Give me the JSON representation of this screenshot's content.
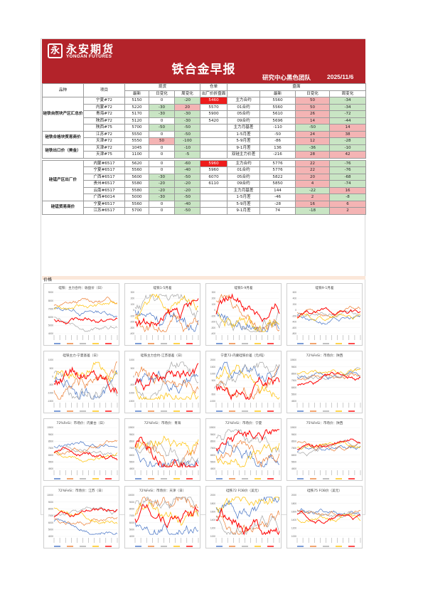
{
  "header": {
    "logo_cn": "永安期货",
    "logo_en": "YONGAN FUTURES",
    "title": "铁合金早报",
    "team": "研究中心黑色团队",
    "date": "2025/11/6"
  },
  "table": {
    "h_variety": "品种",
    "h_item": "项目",
    "h_spot": "现货",
    "h_warehouse": "仓单",
    "h_futures": "盘面",
    "h_latest": "最新",
    "h_daily": "日变化",
    "h_weekly": "周变化",
    "h_factory_price": "出厂价折盘面",
    "groups": [
      {
        "name": "硅铁自然块产区汇总价",
        "rows": [
          {
            "item": "宁夏#72",
            "latest": "5150",
            "daily": "0",
            "weekly": "-20",
            "wh": "5460",
            "fcontract": "主力合约",
            "flatest": "5560",
            "fdaily": "50",
            "fweekly": "-34"
          },
          {
            "item": "内蒙#72",
            "latest": "5220",
            "daily": "-30",
            "weekly": "20",
            "wh": "5570",
            "fcontract": "01合约",
            "flatest": "5560",
            "fdaily": "50",
            "fweekly": "-34"
          },
          {
            "item": "青海#72",
            "latest": "5170",
            "daily": "-30",
            "weekly": "-30",
            "wh": "5900",
            "fcontract": "05合约",
            "flatest": "5610",
            "fdaily": "26",
            "fweekly": "-72"
          },
          {
            "item": "陕西#72",
            "latest": "5120",
            "daily": "0",
            "weekly": "-30",
            "wh": "5420",
            "fcontract": "09合约",
            "flatest": "5696",
            "fdaily": "14",
            "fweekly": "-44"
          },
          {
            "item": "陕西#75",
            "latest": "5700",
            "daily": "-50",
            "weekly": "-50",
            "wh": "",
            "fcontract": "主力月基差",
            "flatest": "-110",
            "fdaily": "-50",
            "fweekly": "14"
          }
        ]
      },
      {
        "name": "硅铁合格块贸易商价",
        "rows": [
          {
            "item": "江苏#72",
            "latest": "5550",
            "daily": "0",
            "weekly": "-50",
            "wh": "",
            "fcontract": "1-5月差",
            "flatest": "-50",
            "fdaily": "24",
            "fweekly": "38"
          },
          {
            "item": "天津#72",
            "latest": "5550",
            "daily": "50",
            "weekly": "-100",
            "wh": "",
            "fcontract": "5-9月差",
            "flatest": "-86",
            "fdaily": "12",
            "fweekly": "-28"
          }
        ]
      },
      {
        "name": "硅铁出口价（美金）",
        "rows": [
          {
            "item": "天津#72",
            "latest": "1045",
            "daily": "0",
            "weekly": "-10",
            "wh": "",
            "fcontract": "9-1月差",
            "flatest": "136",
            "fdaily": "-36",
            "fweekly": "-10"
          },
          {
            "item": "天津#75",
            "latest": "1100",
            "daily": "0",
            "weekly": "-5",
            "wh": "",
            "fcontract": "双硅主力价差",
            "flatest": "-216",
            "fdaily": "28",
            "fweekly": "42"
          }
        ]
      },
      {
        "name": "硅锰产区出厂价",
        "rows": [
          {
            "item": "内蒙#6517",
            "latest": "5620",
            "daily": "0",
            "weekly": "-60",
            "wh": "5960",
            "fcontract": "主力合约",
            "flatest": "5776",
            "fdaily": "22",
            "fweekly": "-76"
          },
          {
            "item": "宁夏#6517",
            "latest": "5560",
            "daily": "0",
            "weekly": "-40",
            "wh": "5960",
            "fcontract": "01合约",
            "flatest": "5776",
            "fdaily": "22",
            "fweekly": "-76"
          },
          {
            "item": "广西#6517",
            "latest": "5600",
            "daily": "-30",
            "weekly": "-50",
            "wh": "6070",
            "fcontract": "05合约",
            "flatest": "5822",
            "fdaily": "20",
            "fweekly": "-68"
          },
          {
            "item": "贵州#6517",
            "latest": "5580",
            "daily": "-20",
            "weekly": "-20",
            "wh": "6110",
            "fcontract": "09合约",
            "flatest": "5850",
            "fdaily": "4",
            "fweekly": "-74"
          },
          {
            "item": "云南#6517",
            "latest": "5580",
            "daily": "-20",
            "weekly": "-20",
            "wh": "",
            "fcontract": "主力月基差",
            "flatest": "144",
            "fdaily": "-22",
            "fweekly": "16"
          },
          {
            "item": "广西#6014",
            "latest": "5000",
            "daily": "-30",
            "weekly": "-50",
            "wh": "",
            "fcontract": "1-5月差",
            "flatest": "-46",
            "fdaily": "2",
            "fweekly": "-8"
          }
        ]
      },
      {
        "name": "硅锰贸易商价",
        "rows": [
          {
            "item": "宁夏#6517",
            "latest": "5560",
            "daily": "0",
            "weekly": "-40",
            "wh": "",
            "fcontract": "5-9月差",
            "flatest": "-28",
            "fdaily": "16",
            "fweekly": "6"
          },
          {
            "item": "江苏#6517",
            "latest": "5700",
            "daily": "0",
            "weekly": "-50",
            "wh": "",
            "fcontract": "9-1月差",
            "flatest": "74",
            "fdaily": "-18",
            "fweekly": "2"
          }
        ]
      }
    ]
  },
  "charts_label": "价格",
  "charts": [
    {
      "title": "硅铁：主力合约：收盘价（日）",
      "type": "line",
      "ylim": [
        4000,
        9500
      ],
      "yticks": [
        "9000",
        "8000",
        "7000",
        "6000",
        "5000",
        "4000"
      ],
      "series": [
        {
          "color": "#4472c4"
        },
        {
          "color": "#ed7d31"
        },
        {
          "color": "#a5a5a5"
        },
        {
          "color": "#ffc000"
        },
        {
          "color": "#ff0000"
        }
      ]
    },
    {
      "title": "硅铁1-5月差",
      "type": "line",
      "ylim": [
        -400,
        400
      ],
      "yticks": [
        "300",
        "200",
        "100",
        "0",
        "-100",
        "-200",
        "-300",
        "-400"
      ],
      "series": [
        {
          "color": "#4472c4"
        },
        {
          "color": "#ed7d31"
        },
        {
          "color": "#a5a5a5"
        },
        {
          "color": "#ffc000"
        },
        {
          "color": "#ff0000"
        }
      ]
    },
    {
      "title": "硅铁5-9月差",
      "type": "line",
      "ylim": [
        -400,
        400
      ],
      "yticks": [
        "300",
        "200",
        "100",
        "0",
        "-100",
        "-200",
        "-300",
        "-400"
      ],
      "series": [
        {
          "color": "#4472c4"
        },
        {
          "color": "#ed7d31"
        },
        {
          "color": "#a5a5a5"
        },
        {
          "color": "#ffc000"
        },
        {
          "color": "#ff0000"
        }
      ]
    },
    {
      "title": "硅铁9-1月差",
      "type": "line",
      "ylim": [
        -800,
        600
      ],
      "yticks": [
        "600",
        "400",
        "200",
        "0",
        "-200",
        "-400",
        "-600",
        "-800"
      ],
      "series": [
        {
          "color": "#4472c4"
        },
        {
          "color": "#ed7d31"
        },
        {
          "color": "#a5a5a5"
        },
        {
          "color": "#ffc000"
        },
        {
          "color": "#ff0000"
        }
      ]
    },
    {
      "title": "硅铁主力-宁夏基差（日）",
      "type": "line",
      "ylim": [
        -1500,
        1500
      ],
      "yticks": [
        "1000",
        "500",
        "0",
        "-500",
        "-1000",
        "-1500"
      ],
      "series": [
        {
          "color": "#4472c4"
        },
        {
          "color": "#ed7d31"
        },
        {
          "color": "#a5a5a5"
        },
        {
          "color": "#ffc000"
        },
        {
          "color": "#ff0000"
        }
      ]
    },
    {
      "title": "硅铁主力合约-江苏基差（日）",
      "type": "line",
      "ylim": [
        -1500,
        1500
      ],
      "yticks": [
        "1000",
        "500",
        "0",
        "-500",
        "-1000",
        "-1500"
      ],
      "series": [
        {
          "color": "#4472c4"
        },
        {
          "color": "#ed7d31"
        },
        {
          "color": "#a5a5a5"
        },
        {
          "color": "#ffc000"
        },
        {
          "color": "#ff0000"
        }
      ]
    },
    {
      "title": "宁夏72-内蒙硅铁价差（元/吨）",
      "type": "line",
      "ylim": [
        -1000,
        2500
      ],
      "yticks": [
        "2000",
        "1500",
        "1000",
        "500",
        "0",
        "-500",
        "-1000"
      ],
      "series": [
        {
          "color": "#4472c4"
        },
        {
          "color": "#ed7d31"
        },
        {
          "color": "#a5a5a5"
        },
        {
          "color": "#ffc000"
        },
        {
          "color": "#ff0000"
        }
      ]
    },
    {
      "title": "72%FeSi：市场价：陕西",
      "type": "line",
      "ylim": [
        4500,
        10500
      ],
      "yticks": [
        "10500",
        "9500",
        "8500",
        "7500",
        "6500",
        "5500",
        "4500"
      ],
      "series": [
        {
          "color": "#4472c4"
        },
        {
          "color": "#ed7d31"
        },
        {
          "color": "#a5a5a5"
        },
        {
          "color": "#ffc000"
        },
        {
          "color": "#ff0000"
        }
      ]
    },
    {
      "title": "72%FeSi：市场价：内蒙古（日）",
      "type": "line",
      "ylim": [
        4500,
        10500
      ],
      "yticks": [
        "10500",
        "9500",
        "8500",
        "7500",
        "6500",
        "5500",
        "4500"
      ],
      "series": [
        {
          "color": "#4472c4"
        },
        {
          "color": "#ed7d31"
        },
        {
          "color": "#a5a5a5"
        },
        {
          "color": "#ffc000"
        },
        {
          "color": "#ff0000"
        }
      ]
    },
    {
      "title": "72%FeSi：市场价：青海",
      "type": "line",
      "ylim": [
        4500,
        10500
      ],
      "yticks": [
        "10500",
        "9500",
        "8500",
        "7500",
        "6500",
        "5500",
        "4500"
      ],
      "series": [
        {
          "color": "#4472c4"
        },
        {
          "color": "#ed7d31"
        },
        {
          "color": "#a5a5a5"
        },
        {
          "color": "#ffc000"
        },
        {
          "color": "#ff0000"
        }
      ]
    },
    {
      "title": "72%FeSi：市场价：宁夏",
      "type": "line",
      "ylim": [
        4500,
        10500
      ],
      "yticks": [
        "10500",
        "9500",
        "8500",
        "7500",
        "6500",
        "5500",
        "4500"
      ],
      "series": [
        {
          "color": "#4472c4"
        },
        {
          "color": "#ed7d31"
        },
        {
          "color": "#a5a5a5"
        },
        {
          "color": "#ffc000"
        },
        {
          "color": "#ff0000"
        }
      ]
    },
    {
      "title": "75%FeSi：市场价：陕西",
      "type": "line",
      "ylim": [
        4500,
        10500
      ],
      "yticks": [
        "10500",
        "9500",
        "8500",
        "7500",
        "6500",
        "5500",
        "4500"
      ],
      "series": [
        {
          "color": "#4472c4"
        },
        {
          "color": "#ed7d31"
        },
        {
          "color": "#a5a5a5"
        },
        {
          "color": "#ffc000"
        },
        {
          "color": "#ff0000"
        }
      ]
    },
    {
      "title": "72%FeSi：市场价：江苏（日）",
      "type": "line",
      "ylim": [
        4000,
        10000
      ],
      "yticks": [
        "10000",
        "9000",
        "8000",
        "7000",
        "6000",
        "5000",
        "4000"
      ],
      "series": [
        {
          "color": "#4472c4"
        },
        {
          "color": "#ed7d31"
        },
        {
          "color": "#a5a5a5"
        },
        {
          "color": "#ffc000"
        },
        {
          "color": "#ff0000"
        }
      ]
    },
    {
      "title": "72%FeSi：市场价：天津（日）",
      "type": "line",
      "ylim": [
        4000,
        10000
      ],
      "yticks": [
        "10000",
        "9000",
        "8000",
        "7000",
        "6000",
        "5000",
        "4000"
      ],
      "series": [
        {
          "color": "#4472c4"
        },
        {
          "color": "#ed7d31"
        },
        {
          "color": "#a5a5a5"
        },
        {
          "color": "#ffc000"
        },
        {
          "color": "#ff0000"
        }
      ]
    },
    {
      "title": "硅铁72 FOB价（美元）",
      "type": "line",
      "ylim": [
        1000,
        2000
      ],
      "yticks": [
        "2000",
        "1800",
        "1600",
        "1400",
        "1200",
        "1000"
      ],
      "series": [
        {
          "color": "#4472c4"
        },
        {
          "color": "#ed7d31"
        },
        {
          "color": "#a5a5a5"
        },
        {
          "color": "#ffc000"
        },
        {
          "color": "#ff0000"
        }
      ]
    },
    {
      "title": "硅铁75 FOB价（美元）",
      "type": "line",
      "ylim": [
        1000,
        2000
      ],
      "yticks": [
        "2000",
        "1800",
        "1600",
        "1400",
        "1200",
        "1000"
      ],
      "series": [
        {
          "color": "#4472c4"
        },
        {
          "color": "#ed7d31"
        },
        {
          "color": "#a5a5a5"
        },
        {
          "color": "#ffc000"
        },
        {
          "color": "#ff0000"
        }
      ]
    }
  ]
}
